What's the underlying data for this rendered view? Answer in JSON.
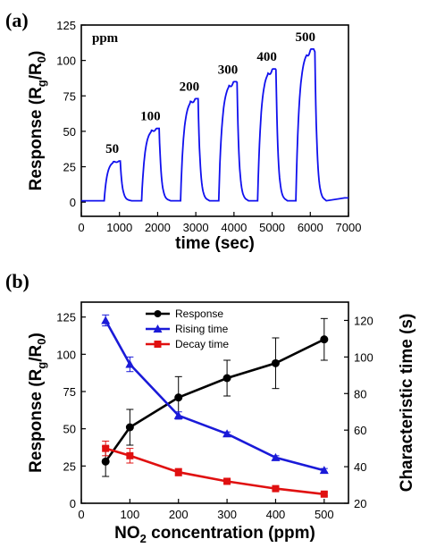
{
  "chart_data": [
    {
      "panel_label": "(a)",
      "type": "line",
      "xlabel": "time (sec)",
      "ylabel_main": "Response (R",
      "ylabel_sub1": "g",
      "ylabel_mid": "/R",
      "ylabel_sub2": "0",
      "ylabel_end": ")",
      "xlim": [
        0,
        7000
      ],
      "ylim": [
        -10,
        125
      ],
      "xticks": [
        0,
        1000,
        2000,
        3000,
        4000,
        5000,
        6000,
        7000
      ],
      "yticks": [
        0,
        25,
        50,
        75,
        100,
        125
      ],
      "unit_note": "ppm",
      "line_color": "#1010ee",
      "pulses": [
        {
          "label": "50",
          "on": 600,
          "off": 1020,
          "peak": 29
        },
        {
          "label": "100",
          "on": 1580,
          "off": 2040,
          "peak": 52
        },
        {
          "label": "200",
          "on": 2600,
          "off": 3060,
          "peak": 73
        },
        {
          "label": "300",
          "on": 3600,
          "off": 4080,
          "peak": 85
        },
        {
          "label": "400",
          "on": 4620,
          "off": 5100,
          "peak": 94
        },
        {
          "label": "500",
          "on": 5620,
          "off": 6120,
          "peak": 108
        }
      ],
      "baseline": 1,
      "grid": false
    },
    {
      "panel_label": "(b)",
      "type": "line",
      "xlabel_pre": "NO",
      "xlabel_sub": "2",
      "xlabel_post": " concentration (ppm)",
      "ylabel_main": "Response (R",
      "ylabel_sub1": "g",
      "ylabel_mid": "/R",
      "ylabel_sub2": "0",
      "ylabel_end": ")",
      "y2label": "Characteristic time (s)",
      "xlim": [
        0,
        550
      ],
      "ylim": [
        0,
        135
      ],
      "y2lim": [
        20,
        130
      ],
      "xticks": [
        0,
        100,
        200,
        300,
        400,
        500
      ],
      "yticks": [
        0,
        25,
        50,
        75,
        100,
        125
      ],
      "y2ticks": [
        20,
        40,
        60,
        80,
        100,
        120
      ],
      "legend_position": "top-center",
      "grid": false,
      "series": [
        {
          "name": "Response",
          "axis": "left",
          "color": "#000000",
          "marker": "circle",
          "x": [
            50,
            100,
            200,
            300,
            400,
            500
          ],
          "y": [
            28,
            51,
            71,
            84,
            94,
            110
          ],
          "err": [
            10,
            12,
            14,
            12,
            17,
            14
          ]
        },
        {
          "name": "Rising time",
          "axis": "right",
          "color": "#1a1ad8",
          "marker": "triangle",
          "x": [
            50,
            100,
            200,
            300,
            400,
            500
          ],
          "y": [
            120,
            96,
            68,
            58,
            45,
            38
          ],
          "err": [
            3,
            4,
            2,
            1,
            1,
            1
          ]
        },
        {
          "name": "Decay time",
          "axis": "right",
          "color": "#e01010",
          "marker": "square",
          "x": [
            50,
            100,
            200,
            300,
            400,
            500
          ],
          "y": [
            50,
            46,
            37,
            32,
            28,
            25
          ],
          "err": [
            4,
            4,
            2,
            1,
            1,
            1
          ]
        }
      ]
    }
  ]
}
